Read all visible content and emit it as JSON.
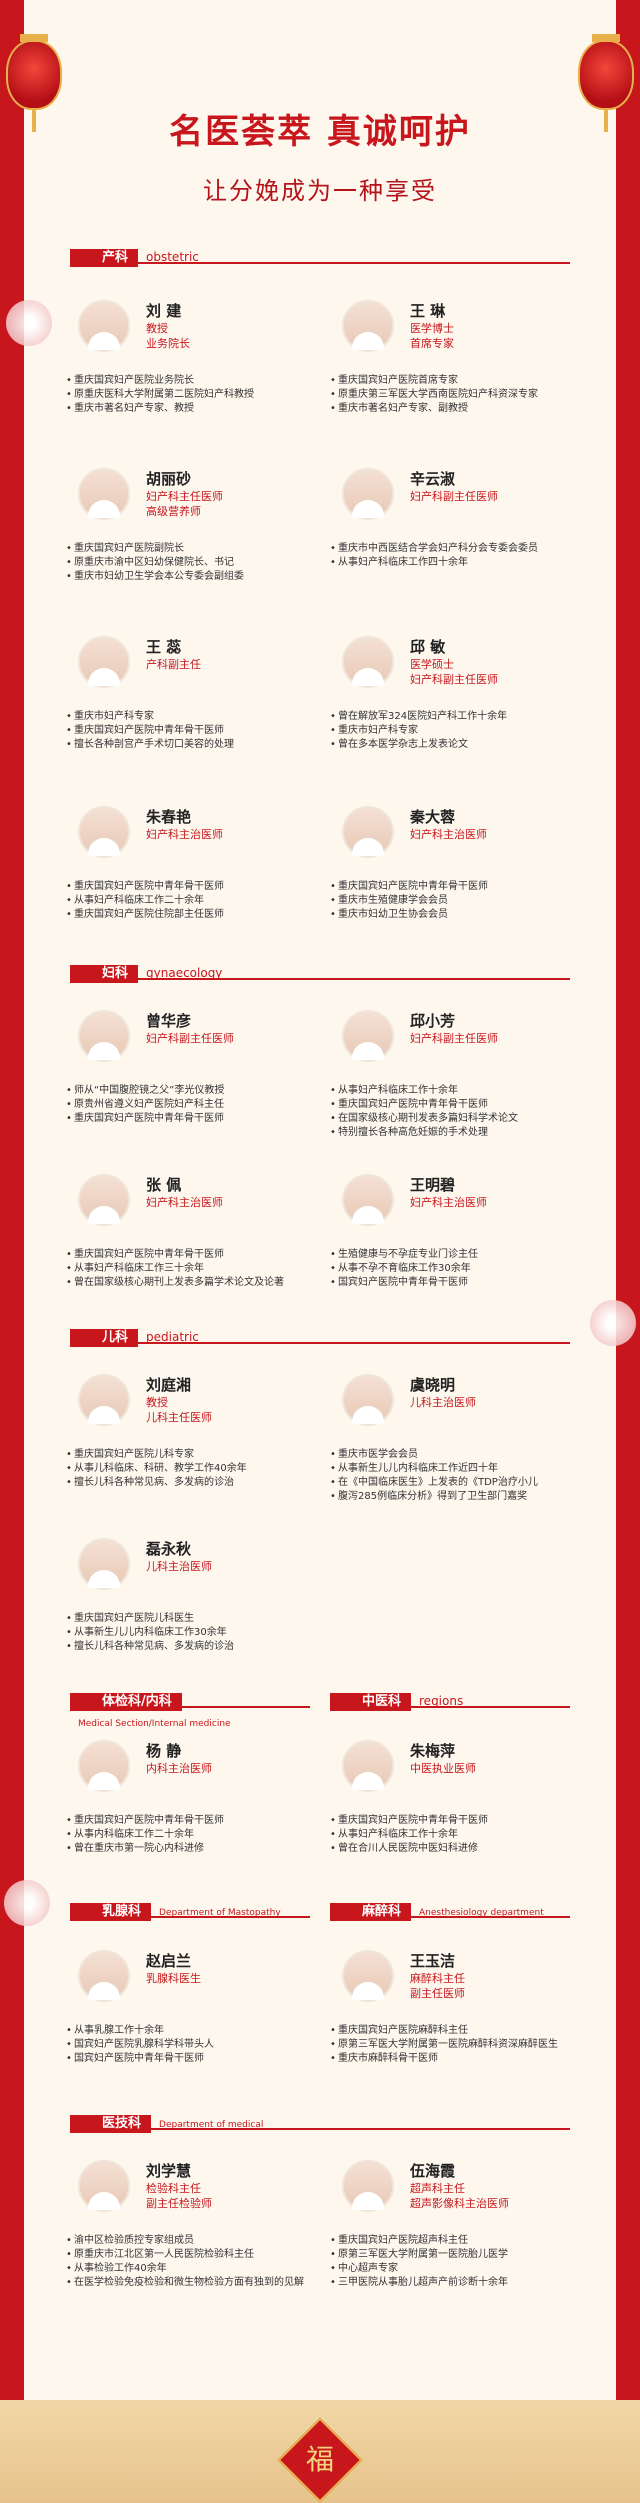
{
  "header": {
    "title": "名医荟萃  真诚呵护",
    "subtitle": "让分娩成为一种享受"
  },
  "sections": {
    "obstetric": {
      "tag": "产科",
      "en": "obstetric"
    },
    "gynecology": {
      "tag": "妇科",
      "en": "gynaecology"
    },
    "pediatric": {
      "tag": "儿科",
      "en": "pediatric"
    },
    "internal": {
      "tag": "体检科/内科",
      "en": "Medical Section/Internal medicine"
    },
    "regions": {
      "tag": "中医科",
      "en": "regions"
    },
    "mastopathy": {
      "tag": "乳腺科",
      "en": "Department of Mastopathy"
    },
    "anesthesia": {
      "tag": "麻醉科",
      "en": "Anesthesiology department"
    },
    "medical": {
      "tag": "医技科",
      "en": "Department of medical"
    }
  },
  "doctors": [
    {
      "name": "刘 建",
      "roles": [
        "教授",
        "业务院长"
      ],
      "bullets": [
        "重庆国宾妇产医院业务院长",
        "原重庆医科大学附属第二医院妇产科教授",
        "重庆市著名妇产专家、教授"
      ]
    },
    {
      "name": "王 琳",
      "roles": [
        "医学博士",
        "首席专家"
      ],
      "bullets": [
        "重庆国宾妇产医院首席专家",
        "原重庆第三军医大学西南医院妇产科资深专家",
        "重庆市著名妇产专家、副教授"
      ]
    },
    {
      "name": "胡丽砂",
      "roles": [
        "妇产科主任医师",
        "高级营养师"
      ],
      "bullets": [
        "重庆国宾妇产医院副院长",
        "原重庆市渝中区妇幼保健院长、书记",
        "重庆市妇幼卫生学会本公专委会副组委"
      ]
    },
    {
      "name": "辛云淑",
      "roles": [
        "妇产科副主任医师"
      ],
      "bullets": [
        "重庆市中西医结合学会妇产科分会专委会委员",
        "从事妇产科临床工作四十余年"
      ]
    },
    {
      "name": "王 蕊",
      "roles": [
        "产科副主任"
      ],
      "bullets": [
        "重庆市妇产科专家",
        "重庆国宾妇产医院中青年骨干医师",
        "擅长各种剖宫产手术切口美容的处理"
      ]
    },
    {
      "name": "邱 敏",
      "roles": [
        "医学硕士",
        "妇产科副主任医师"
      ],
      "bullets": [
        "曾在解放军324医院妇产科工作十余年",
        "重庆市妇产科专家",
        "曾在多本医学杂志上发表论文"
      ]
    },
    {
      "name": "朱春艳",
      "roles": [
        "妇产科主治医师"
      ],
      "bullets": [
        "重庆国宾妇产医院中青年骨干医师",
        "从事妇产科临床工作二十余年",
        "重庆国宾妇产医院住院部主任医师"
      ]
    },
    {
      "name": "秦大蓉",
      "roles": [
        "妇产科主治医师"
      ],
      "bullets": [
        "重庆国宾妇产医院中青年骨干医师",
        "重庆市生殖健康学会会员",
        "重庆市妇幼卫生协会会员"
      ]
    },
    {
      "name": "曾华彦",
      "roles": [
        "妇产科副主任医师"
      ],
      "bullets": [
        "师从“中国腹腔镜之父”李光仪教授",
        "原贵州省遵义妇产医院妇产科主任",
        "重庆国宾妇产医院中青年骨干医师"
      ]
    },
    {
      "name": "邱小芳",
      "roles": [
        "妇产科副主任医师"
      ],
      "bullets": [
        "从事妇产科临床工作十余年",
        "重庆国宾妇产医院中青年骨干医师",
        "在国家级核心期刊发表多篇妇科学术论文",
        "特别擅长各种高危妊娠的手术处理"
      ]
    },
    {
      "name": "张 佩",
      "roles": [
        "妇产科主治医师"
      ],
      "bullets": [
        "重庆国宾妇产医院中青年骨干医师",
        "从事妇产科临床工作三十余年",
        "曾在国家级核心期刊上发表多篇学术论文及论著"
      ]
    },
    {
      "name": "王明碧",
      "roles": [
        "妇产科主治医师"
      ],
      "bullets": [
        "生殖健康与不孕症专业门诊主任",
        "从事不孕不育临床工作30余年",
        "国宾妇产医院中青年骨干医师"
      ]
    },
    {
      "name": "刘庭湘",
      "roles": [
        "教授",
        "儿科主任医师"
      ],
      "bullets": [
        "重庆国宾妇产医院儿科专家",
        "从事儿科临床、科研、教学工作40余年",
        "擅长儿科各种常见病、多发病的诊治"
      ]
    },
    {
      "name": "虞晓明",
      "roles": [
        "儿科主治医师"
      ],
      "bullets": [
        "重庆市医学会会员",
        "从事新生儿儿内科临床工作近四十年",
        "在《中国临床医生》上发表的《TDP治疗小儿",
        "腹泻285例临床分析》得到了卫生部门嘉奖"
      ]
    },
    {
      "name": "磊永秋",
      "roles": [
        "儿科主治医师"
      ],
      "bullets": [
        "重庆国宾妇产医院儿科医生",
        "从事新生儿儿内科临床工作30余年",
        "擅长儿科各种常见病、多发病的诊治"
      ]
    },
    {
      "name": "杨 静",
      "roles": [
        "内科主治医师"
      ],
      "bullets": [
        "重庆国宾妇产医院中青年骨干医师",
        "从事内科临床工作二十余年",
        "曾在重庆市第一院心内科进修"
      ]
    },
    {
      "name": "朱梅萍",
      "roles": [
        "中医执业医师"
      ],
      "bullets": [
        "重庆国宾妇产医院中青年骨干医师",
        "从事妇产科临床工作十余年",
        "曾在合川人民医院中医妇科进修"
      ]
    },
    {
      "name": "赵启兰",
      "roles": [
        "乳腺科医生"
      ],
      "bullets": [
        "从事乳腺工作十余年",
        "国宾妇产医院乳腺科学科带头人",
        "国宾妇产医院中青年骨干医师"
      ]
    },
    {
      "name": "王玉洁",
      "roles": [
        "麻醉科主任",
        "副主任医师"
      ],
      "bullets": [
        "重庆国宾妇产医院麻醉科主任",
        "原第三军医大学附属第一医院麻醉科资深麻醉医生",
        "重庆市麻醉科骨干医师"
      ]
    },
    {
      "name": "刘学慧",
      "roles": [
        "检验科主任",
        "副主任检验师"
      ],
      "bullets": [
        "渝中区检验质控专家组成员",
        "原重庆市江北区第一人民医院检验科主任",
        "从事检验工作40余年",
        "在医学检验免疫检验和微生物检验方面有独到的见解"
      ]
    },
    {
      "name": "伍海霞",
      "roles": [
        "超声科主任",
        "超声影像科主治医师"
      ],
      "bullets": [
        "重庆国宾妇产医院超声科主任",
        "原第三军医大学附属第一医院胎儿医学",
        "中心超声专家",
        "三甲医院从事胎儿超声产前诊断十余年"
      ]
    }
  ],
  "fu_char": "福"
}
